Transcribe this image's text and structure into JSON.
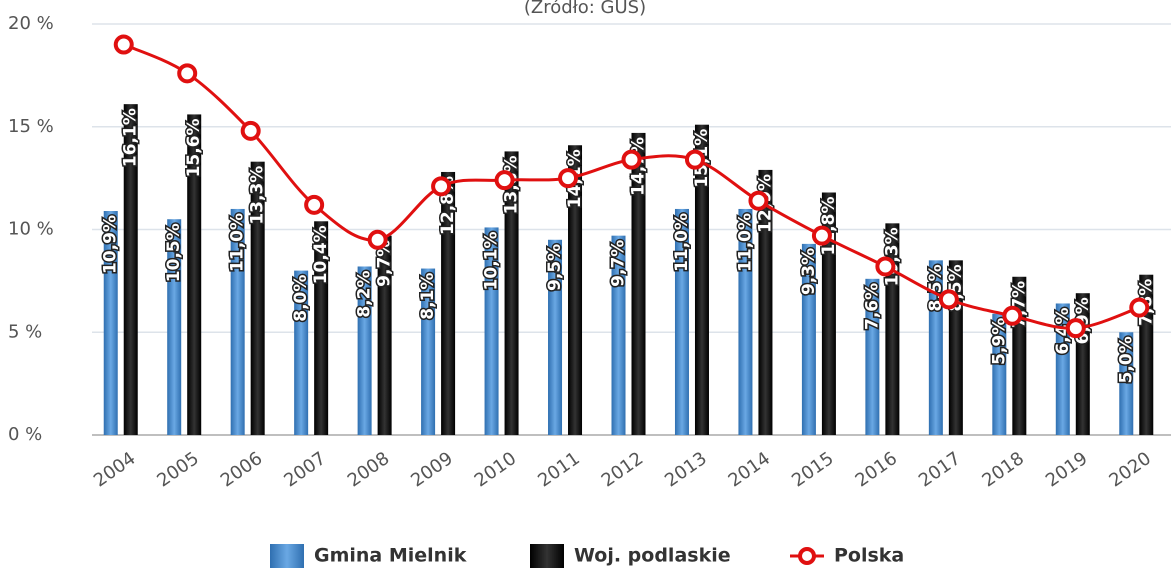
{
  "chart_data": {
    "type": "bar",
    "subtitle": "(Źródło: GUS)",
    "categories": [
      "2004",
      "2005",
      "2006",
      "2007",
      "2008",
      "2009",
      "2010",
      "2011",
      "2012",
      "2013",
      "2014",
      "2015",
      "2016",
      "2017",
      "2018",
      "2019",
      "2020"
    ],
    "series": [
      {
        "name": "Gmina Mielnik",
        "type": "bar",
        "color": "#4f8fd0",
        "values": [
          10.9,
          10.5,
          11.0,
          8.0,
          8.2,
          8.1,
          10.1,
          9.5,
          9.7,
          11.0,
          11.0,
          9.3,
          7.6,
          8.5,
          5.9,
          6.4,
          5.0
        ],
        "value_labels": [
          "10,9%",
          "10,5%",
          "11,0%",
          "8,0%",
          "8,2%",
          "8,1%",
          "10,1%",
          "9,5%",
          "9,7%",
          "11,0%",
          "11,0%",
          "9,3%",
          "7,6%",
          "8,5%",
          "5,9%",
          "6,4%",
          "5,0%"
        ]
      },
      {
        "name": "Woj. podlaskie",
        "type": "bar",
        "color": "#111111",
        "values": [
          16.1,
          15.6,
          13.3,
          10.4,
          9.7,
          12.8,
          13.8,
          14.1,
          14.7,
          15.1,
          12.9,
          11.8,
          10.3,
          8.5,
          7.7,
          6.9,
          7.8
        ],
        "value_labels": [
          "16,1%",
          "15,6%",
          "13,3%",
          "10,4%",
          "9,7%",
          "12,8%",
          "13,8%",
          "14,1%",
          "14,7%",
          "15,1%",
          "12,9%",
          "11,8%",
          "10,3%",
          "8,5%",
          "7,7%",
          "6,9%",
          "7,8%"
        ]
      },
      {
        "name": "Polska",
        "type": "line",
        "color": "#e01010",
        "values": [
          19.0,
          17.6,
          14.8,
          11.2,
          9.5,
          12.1,
          12.4,
          12.5,
          13.4,
          13.4,
          11.4,
          9.7,
          8.2,
          6.6,
          5.8,
          5.2,
          6.2
        ]
      }
    ],
    "ylim": [
      0,
      20
    ],
    "yticks": [
      {
        "value": 0,
        "label": "0 %"
      },
      {
        "value": 5,
        "label": "5 %"
      },
      {
        "value": 10,
        "label": "10 %"
      },
      {
        "value": 15,
        "label": "15 %"
      },
      {
        "value": 20,
        "label": "20 %"
      }
    ],
    "grid": true,
    "legend": "bottom"
  }
}
